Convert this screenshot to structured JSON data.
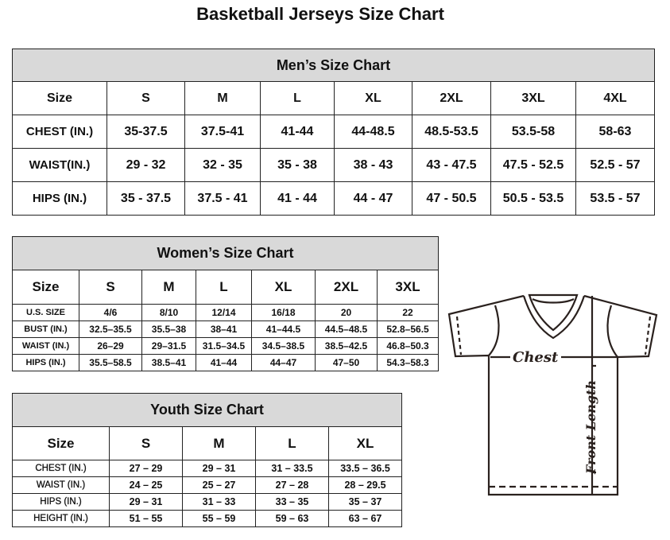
{
  "title": "Basketball Jerseys Size Chart",
  "men": {
    "title": "Men’s Size Chart",
    "headers": [
      "Size",
      "S",
      "M",
      "L",
      "XL",
      "2XL",
      "3XL",
      "4XL"
    ],
    "rows": [
      [
        "CHEST (IN.)",
        "35-37.5",
        "37.5-41",
        "41-44",
        "44-48.5",
        "48.5-53.5",
        "53.5-58",
        "58-63"
      ],
      [
        "WAIST(IN.)",
        "29 - 32",
        "32 - 35",
        "35 - 38",
        "38 - 43",
        "43 - 47.5",
        "47.5 - 52.5",
        "52.5 - 57"
      ],
      [
        "HIPS (IN.)",
        "35 - 37.5",
        "37.5 - 41",
        "41 - 44",
        "44 - 47",
        "47 - 50.5",
        "50.5 - 53.5",
        "53.5 - 57"
      ]
    ]
  },
  "women": {
    "title": "Women’s Size Chart",
    "headers": [
      "Size",
      "S",
      "M",
      "L",
      "XL",
      "2XL",
      "3XL"
    ],
    "rows": [
      [
        "U.S. SIZE",
        "4/6",
        "8/10",
        "12/14",
        "16/18",
        "20",
        "22"
      ],
      [
        "BUST (IN.)",
        "32.5–35.5",
        "35.5–38",
        "38–41",
        "41–44.5",
        "44.5–48.5",
        "52.8–56.5"
      ],
      [
        "WAIST (IN.)",
        "26–29",
        "29–31.5",
        "31.5–34.5",
        "34.5–38.5",
        "38.5–42.5",
        "46.8–50.3"
      ],
      [
        "HIPS (IN.)",
        "35.5–58.5",
        "38.5–41",
        "41–44",
        "44–47",
        "47–50",
        "54.3–58.3"
      ]
    ]
  },
  "youth": {
    "title": "Youth Size Chart",
    "headers": [
      "Size",
      "S",
      "M",
      "L",
      "XL"
    ],
    "rows": [
      [
        "CHEST (IN.)",
        "27 – 29",
        "29 – 31",
        "31 – 33.5",
        "33.5 – 36.5"
      ],
      [
        "WAIST (IN.)",
        "24 – 25",
        "25 – 27",
        "27 – 28",
        "28 – 29.5"
      ],
      [
        "HIPS (IN.)",
        "29 – 31",
        "31 – 33",
        "33 – 35",
        "35 – 37"
      ],
      [
        "HEIGHT (IN.)",
        "51 – 55",
        "55 – 59",
        "59 – 63",
        "63 – 67"
      ]
    ]
  },
  "diagram": {
    "chest_label": "Chest",
    "length_label": "Front Length"
  }
}
